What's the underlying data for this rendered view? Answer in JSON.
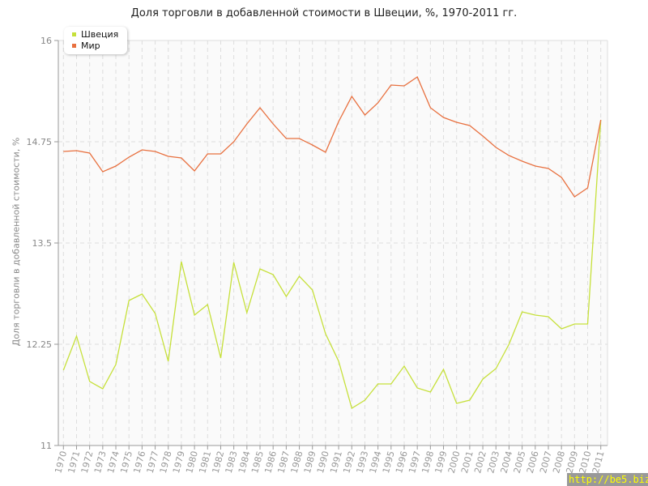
{
  "chart_data": {
    "type": "line",
    "title": "Доля торговли в добавленной стоимости в Швеции, %, 1970-2011 гг.",
    "ylabel": "Доля торговли в добавленной стоимости, %",
    "xlabel": "",
    "ylim": [
      11,
      16
    ],
    "yticks": [
      "11",
      "12.25",
      "13.5",
      "14.75",
      "16"
    ],
    "grid": true,
    "legend": "top-left",
    "x": [
      "1970",
      "1971",
      "1972",
      "1973",
      "1974",
      "1975",
      "1976",
      "1977",
      "1978",
      "1979",
      "1980",
      "1981",
      "1982",
      "1983",
      "1984",
      "1985",
      "1986",
      "1987",
      "1988",
      "1989",
      "1990",
      "1991",
      "1992",
      "1993",
      "1994",
      "1995",
      "1996",
      "1997",
      "1998",
      "1999",
      "2000",
      "2001",
      "2002",
      "2003",
      "2004",
      "2005",
      "2006",
      "2007",
      "2008",
      "2009",
      "2010",
      "2011"
    ],
    "series": [
      {
        "name": "Швеция",
        "color": "#c6e03a",
        "values": [
          11.93,
          12.35,
          11.79,
          11.7,
          12.0,
          12.79,
          12.87,
          12.63,
          12.04,
          13.27,
          12.61,
          12.74,
          12.08,
          13.26,
          12.64,
          13.18,
          13.11,
          12.84,
          13.09,
          12.92,
          12.38,
          12.04,
          11.46,
          11.56,
          11.76,
          11.76,
          11.98,
          11.71,
          11.66,
          11.94,
          11.52,
          11.56,
          11.82,
          11.95,
          12.25,
          12.65,
          12.61,
          12.59,
          12.44,
          12.5,
          12.5,
          15.02
        ]
      },
      {
        "name": "Мир",
        "color": "#e8703f",
        "values": [
          14.63,
          14.64,
          14.61,
          14.38,
          14.45,
          14.56,
          14.65,
          14.63,
          14.57,
          14.55,
          14.39,
          14.6,
          14.6,
          14.75,
          14.97,
          15.17,
          14.97,
          14.79,
          14.79,
          14.71,
          14.62,
          15.0,
          15.31,
          15.08,
          15.23,
          15.45,
          15.44,
          15.55,
          15.17,
          15.05,
          14.99,
          14.95,
          14.82,
          14.68,
          14.58,
          14.51,
          14.45,
          14.42,
          14.31,
          14.07,
          14.18,
          15.02
        ]
      }
    ]
  },
  "watermark": "http://be5.biz"
}
